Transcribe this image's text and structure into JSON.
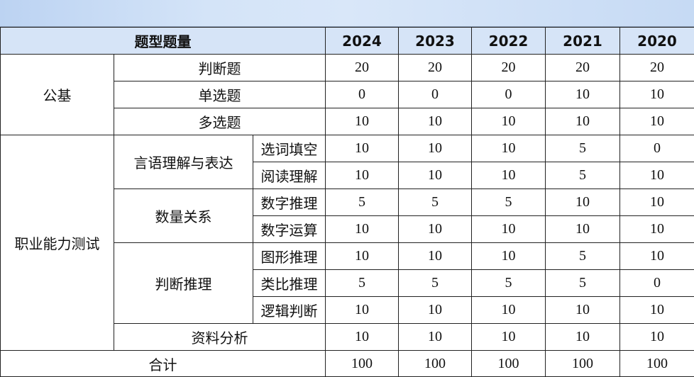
{
  "header": {
    "label": "题型题量",
    "years": [
      "2024",
      "2023",
      "2022",
      "2021",
      "2020"
    ]
  },
  "rows": [
    {
      "cat": "公基",
      "sub": "判断题",
      "vals": [
        "20",
        "20",
        "20",
        "20",
        "20"
      ]
    },
    {
      "sub": "单选题",
      "vals": [
        "0",
        "0",
        "0",
        "10",
        "10"
      ]
    },
    {
      "sub": "多选题",
      "vals": [
        "10",
        "10",
        "10",
        "10",
        "10"
      ]
    },
    {
      "cat": "职业能力测试",
      "sub": "言语理解与表达",
      "item": "选词填空",
      "vals": [
        "10",
        "10",
        "10",
        "5",
        "0"
      ]
    },
    {
      "item": "阅读理解",
      "vals": [
        "10",
        "10",
        "10",
        "5",
        "10"
      ]
    },
    {
      "sub": "数量关系",
      "item": "数字推理",
      "vals": [
        "5",
        "5",
        "5",
        "10",
        "10"
      ]
    },
    {
      "item": "数字运算",
      "vals": [
        "10",
        "10",
        "10",
        "10",
        "10"
      ]
    },
    {
      "sub": "判断推理",
      "item": "图形推理",
      "vals": [
        "10",
        "10",
        "10",
        "5",
        "10"
      ]
    },
    {
      "item": "类比推理",
      "vals": [
        "5",
        "5",
        "5",
        "5",
        "0"
      ]
    },
    {
      "item": "逻辑判断",
      "vals": [
        "10",
        "10",
        "10",
        "10",
        "10"
      ]
    },
    {
      "sub": "资料分析",
      "vals": [
        "10",
        "10",
        "10",
        "10",
        "10"
      ]
    }
  ],
  "total": {
    "label": "合计",
    "vals": [
      "100",
      "100",
      "100",
      "100",
      "100"
    ]
  }
}
